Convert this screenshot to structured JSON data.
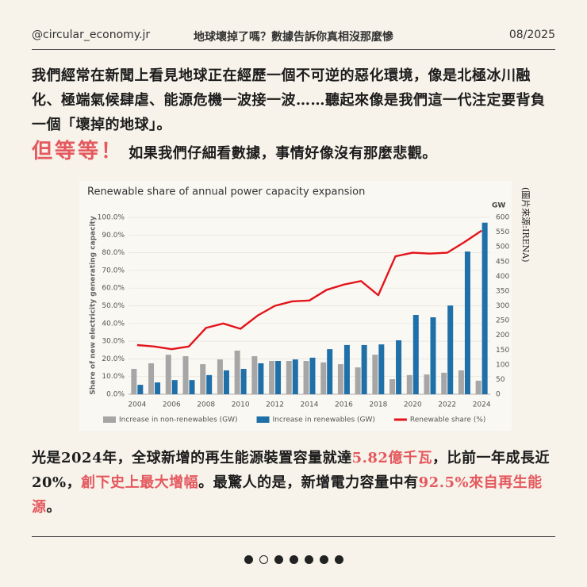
{
  "header": {
    "account": "@circular_economy.jr",
    "title": "地球壞掉了嗎？數據告訴你真相沒那麼慘",
    "date": "08/2025"
  },
  "paragraph1": "我們經常在新聞上看見地球正在經歷一個不可逆的惡化環境，像是北極冰川融化、極端氣候肆虐、能源危機一波接一波……聽起來像是我們這一代注定要背負一個「壞掉的地球」。",
  "callout": {
    "highlight": "但等等！",
    "text": "如果我們仔細看數據，事情好像沒有那麼悲觀。"
  },
  "chart_data": {
    "type": "bar",
    "title": "Renewable share of annual power capacity expansion",
    "ylabel": "Share of new electricity generating capacity",
    "y2label": "GW",
    "source": "(圖片來源:IRENA)",
    "categories": [
      "2004",
      null,
      "2006",
      null,
      "2008",
      null,
      "2010",
      null,
      "2012",
      null,
      "2014",
      null,
      "2016",
      null,
      "2018",
      null,
      "2020",
      null,
      "2022",
      null,
      "2024"
    ],
    "ylim": [
      0,
      100
    ],
    "yticks": [
      {
        "value": 0,
        "label": "0.0%"
      },
      {
        "value": 10,
        "label": "10.0%"
      },
      {
        "value": 20,
        "label": "20.0%"
      },
      {
        "value": 30,
        "label": "30.0%"
      },
      {
        "value": 40,
        "label": "40.0%"
      },
      {
        "value": 50,
        "label": "50.0%"
      },
      {
        "value": 60,
        "label": "60.0%"
      },
      {
        "value": 70,
        "label": "70.0%"
      },
      {
        "value": 80,
        "label": "80.0%"
      },
      {
        "value": 90,
        "label": "90.0%"
      },
      {
        "value": 100,
        "label": "100.0%"
      }
    ],
    "y2lim": [
      0,
      600
    ],
    "y2ticks": [
      0,
      50,
      100,
      150,
      200,
      250,
      300,
      350,
      400,
      450,
      500,
      550,
      600
    ],
    "grid": true,
    "series": [
      {
        "name": "Increase in non-renewables (GW)",
        "type": "bar",
        "axis": "y2",
        "color": "#a6a6a6",
        "values": [
          86,
          105,
          134,
          129,
          102,
          118,
          148,
          129,
          113,
          113,
          113,
          108,
          102,
          91,
          134,
          51,
          65,
          67,
          73,
          81,
          46
        ]
      },
      {
        "name": "Increase in renewables (GW)",
        "type": "bar",
        "axis": "y2",
        "color": "#1f6fa8",
        "values": [
          32,
          40,
          48,
          48,
          65,
          81,
          86,
          105,
          113,
          118,
          124,
          153,
          167,
          167,
          169,
          183,
          269,
          261,
          301,
          484,
          582
        ]
      },
      {
        "name": "Renewable share (%)",
        "type": "line",
        "color": "#e3141b",
        "values": [
          27.8,
          27,
          25.5,
          27,
          37.5,
          40,
          37,
          44.5,
          50,
          52.5,
          53,
          59,
          62,
          64,
          56,
          78,
          80,
          79.5,
          80,
          86,
          92.5
        ]
      }
    ]
  },
  "paragraph2": [
    {
      "text": "光是2024年，全球新增的再生能源裝置容量就達"
    },
    {
      "text": "5.82億千瓦",
      "color": "#e4585e"
    },
    {
      "text": "，比前一年成長近20%，"
    },
    {
      "text": "創下史上最大增幅",
      "color": "#e4585e"
    },
    {
      "text": "。最驚人的是，新增電力容量中有"
    },
    {
      "text": "92.5%來自再生能源",
      "color": "#e4585e"
    },
    {
      "text": "。"
    }
  ]
}
